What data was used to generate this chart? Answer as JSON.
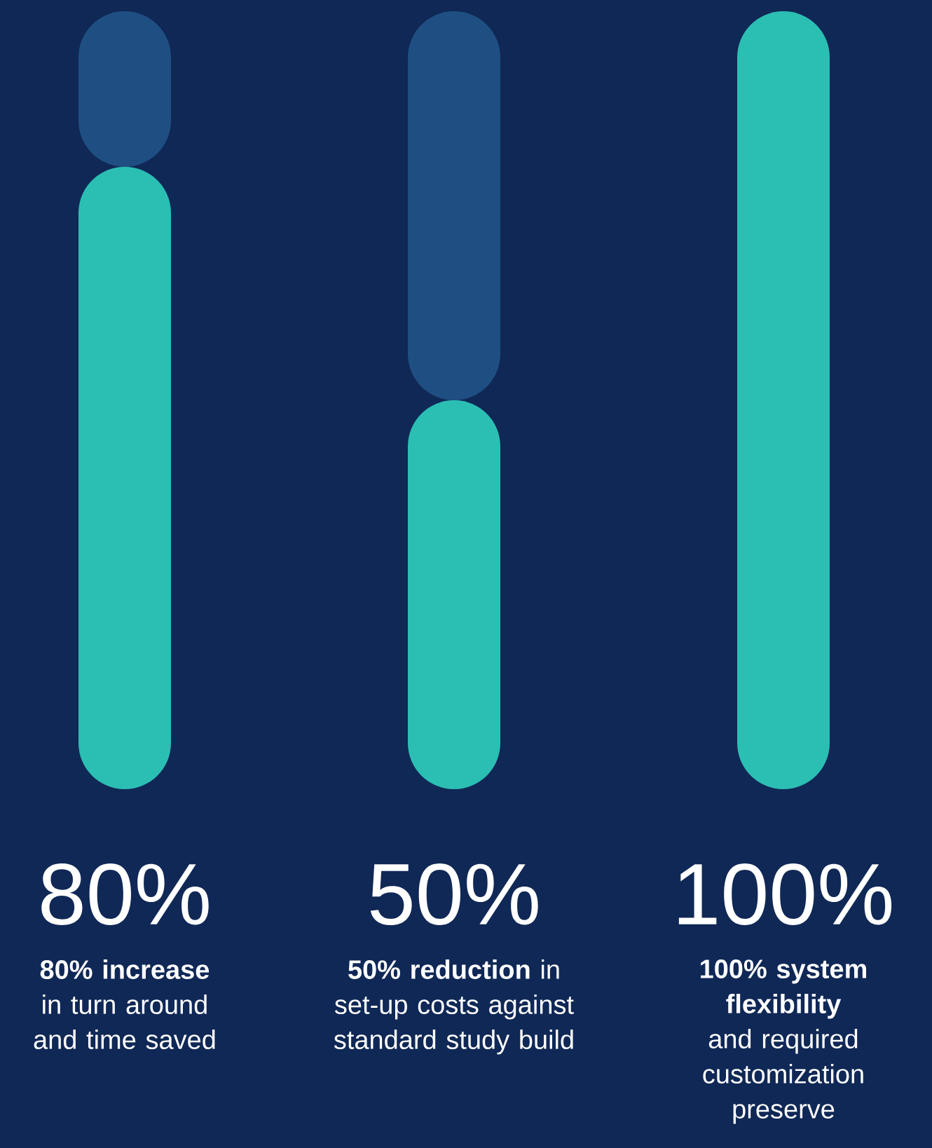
{
  "chart_data": {
    "type": "bar",
    "stacked": true,
    "categories": [
      "**80% increase** in turn around and time saved",
      "**50% reduction** in set-up costs against standard study build",
      "**100% system flexibility** and required customization preserve"
    ],
    "series": [
      {
        "color": "#2bbfb4",
        "values": [
          80,
          50,
          100
        ],
        "value_labels": [
          "80%",
          "50%",
          "100%"
        ]
      },
      {
        "color": "#1f4f82",
        "values": [
          20,
          50,
          0
        ]
      }
    ],
    "ylim": [
      0,
      100
    ]
  }
}
